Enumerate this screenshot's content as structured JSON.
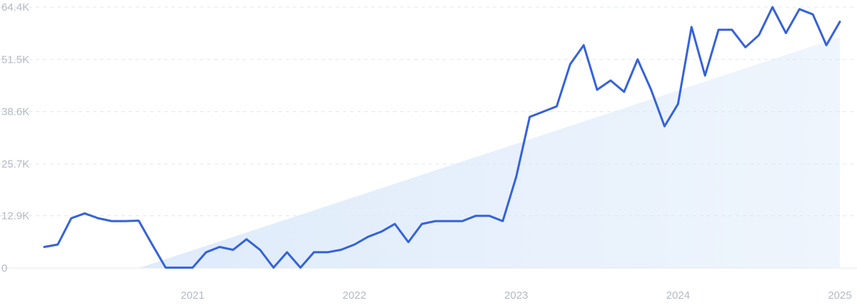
{
  "chart_data": {
    "type": "line",
    "title": "",
    "xlabel": "",
    "ylabel": "",
    "ylim": [
      0,
      64400
    ],
    "xlim": [
      "2020-02",
      "2025-01"
    ],
    "grid": true,
    "colors": {
      "line": "#3562dc",
      "trend_fill": "#dbe9fa",
      "grid": "#dde8f1",
      "tick_text": "#b3b9c4"
    },
    "y_ticks": [
      {
        "value": 0,
        "label": "0"
      },
      {
        "value": 12900,
        "label": "12.9K"
      },
      {
        "value": 25700,
        "label": "25.7K"
      },
      {
        "value": 38600,
        "label": "38.6K"
      },
      {
        "value": 51500,
        "label": "51.5K"
      },
      {
        "value": 64400,
        "label": "64.4K"
      }
    ],
    "x_ticks": [
      {
        "value": "2021-01",
        "label": "2021"
      },
      {
        "value": "2022-01",
        "label": "2022"
      },
      {
        "value": "2023-01",
        "label": "2023"
      },
      {
        "value": "2024-01",
        "label": "2024"
      },
      {
        "value": "2025-01",
        "label": "2025"
      }
    ],
    "trend": [
      {
        "x": "2020-09",
        "y": 0
      },
      {
        "x": "2025-01",
        "y": 57000
      }
    ],
    "series": [
      {
        "points": [
          [
            "2020-02",
            5200
          ],
          [
            "2020-03",
            5800
          ],
          [
            "2020-04",
            12300
          ],
          [
            "2020-05",
            13500
          ],
          [
            "2020-06",
            12300
          ],
          [
            "2020-07",
            11600
          ],
          [
            "2020-08",
            11600
          ],
          [
            "2020-09",
            11700
          ],
          [
            "2020-10",
            5800
          ],
          [
            "2020-11",
            100
          ],
          [
            "2020-12",
            100
          ],
          [
            "2021-01",
            100
          ],
          [
            "2021-02",
            3900
          ],
          [
            "2021-03",
            5200
          ],
          [
            "2021-04",
            4500
          ],
          [
            "2021-05",
            7100
          ],
          [
            "2021-06",
            4500
          ],
          [
            "2021-07",
            100
          ],
          [
            "2021-08",
            3900
          ],
          [
            "2021-09",
            100
          ],
          [
            "2021-10",
            3900
          ],
          [
            "2021-11",
            3900
          ],
          [
            "2021-12",
            4500
          ],
          [
            "2022-01",
            5800
          ],
          [
            "2022-02",
            7700
          ],
          [
            "2022-03",
            9000
          ],
          [
            "2022-04",
            10900
          ],
          [
            "2022-05",
            6400
          ],
          [
            "2022-06",
            10900
          ],
          [
            "2022-07",
            11600
          ],
          [
            "2022-08",
            11600
          ],
          [
            "2022-09",
            11600
          ],
          [
            "2022-10",
            12900
          ],
          [
            "2022-11",
            12900
          ],
          [
            "2022-12",
            11600
          ],
          [
            "2023-01",
            22500
          ],
          [
            "2023-02",
            37300
          ],
          [
            "2023-03",
            38600
          ],
          [
            "2023-04",
            39900
          ],
          [
            "2023-05",
            50300
          ],
          [
            "2023-06",
            55000
          ],
          [
            "2023-07",
            44000
          ],
          [
            "2023-08",
            46300
          ],
          [
            "2023-09",
            43500
          ],
          [
            "2023-10",
            51500
          ],
          [
            "2023-11",
            44000
          ],
          [
            "2023-12",
            35000
          ],
          [
            "2024-01",
            40500
          ],
          [
            "2024-02",
            59500
          ],
          [
            "2024-03",
            47500
          ],
          [
            "2024-04",
            58800
          ],
          [
            "2024-05",
            58800
          ],
          [
            "2024-06",
            54500
          ],
          [
            "2024-07",
            57500
          ],
          [
            "2024-08",
            64400
          ],
          [
            "2024-09",
            58000
          ],
          [
            "2024-10",
            63900
          ],
          [
            "2024-11",
            62600
          ],
          [
            "2024-12",
            55000
          ],
          [
            "2025-01",
            60800
          ]
        ]
      }
    ]
  }
}
